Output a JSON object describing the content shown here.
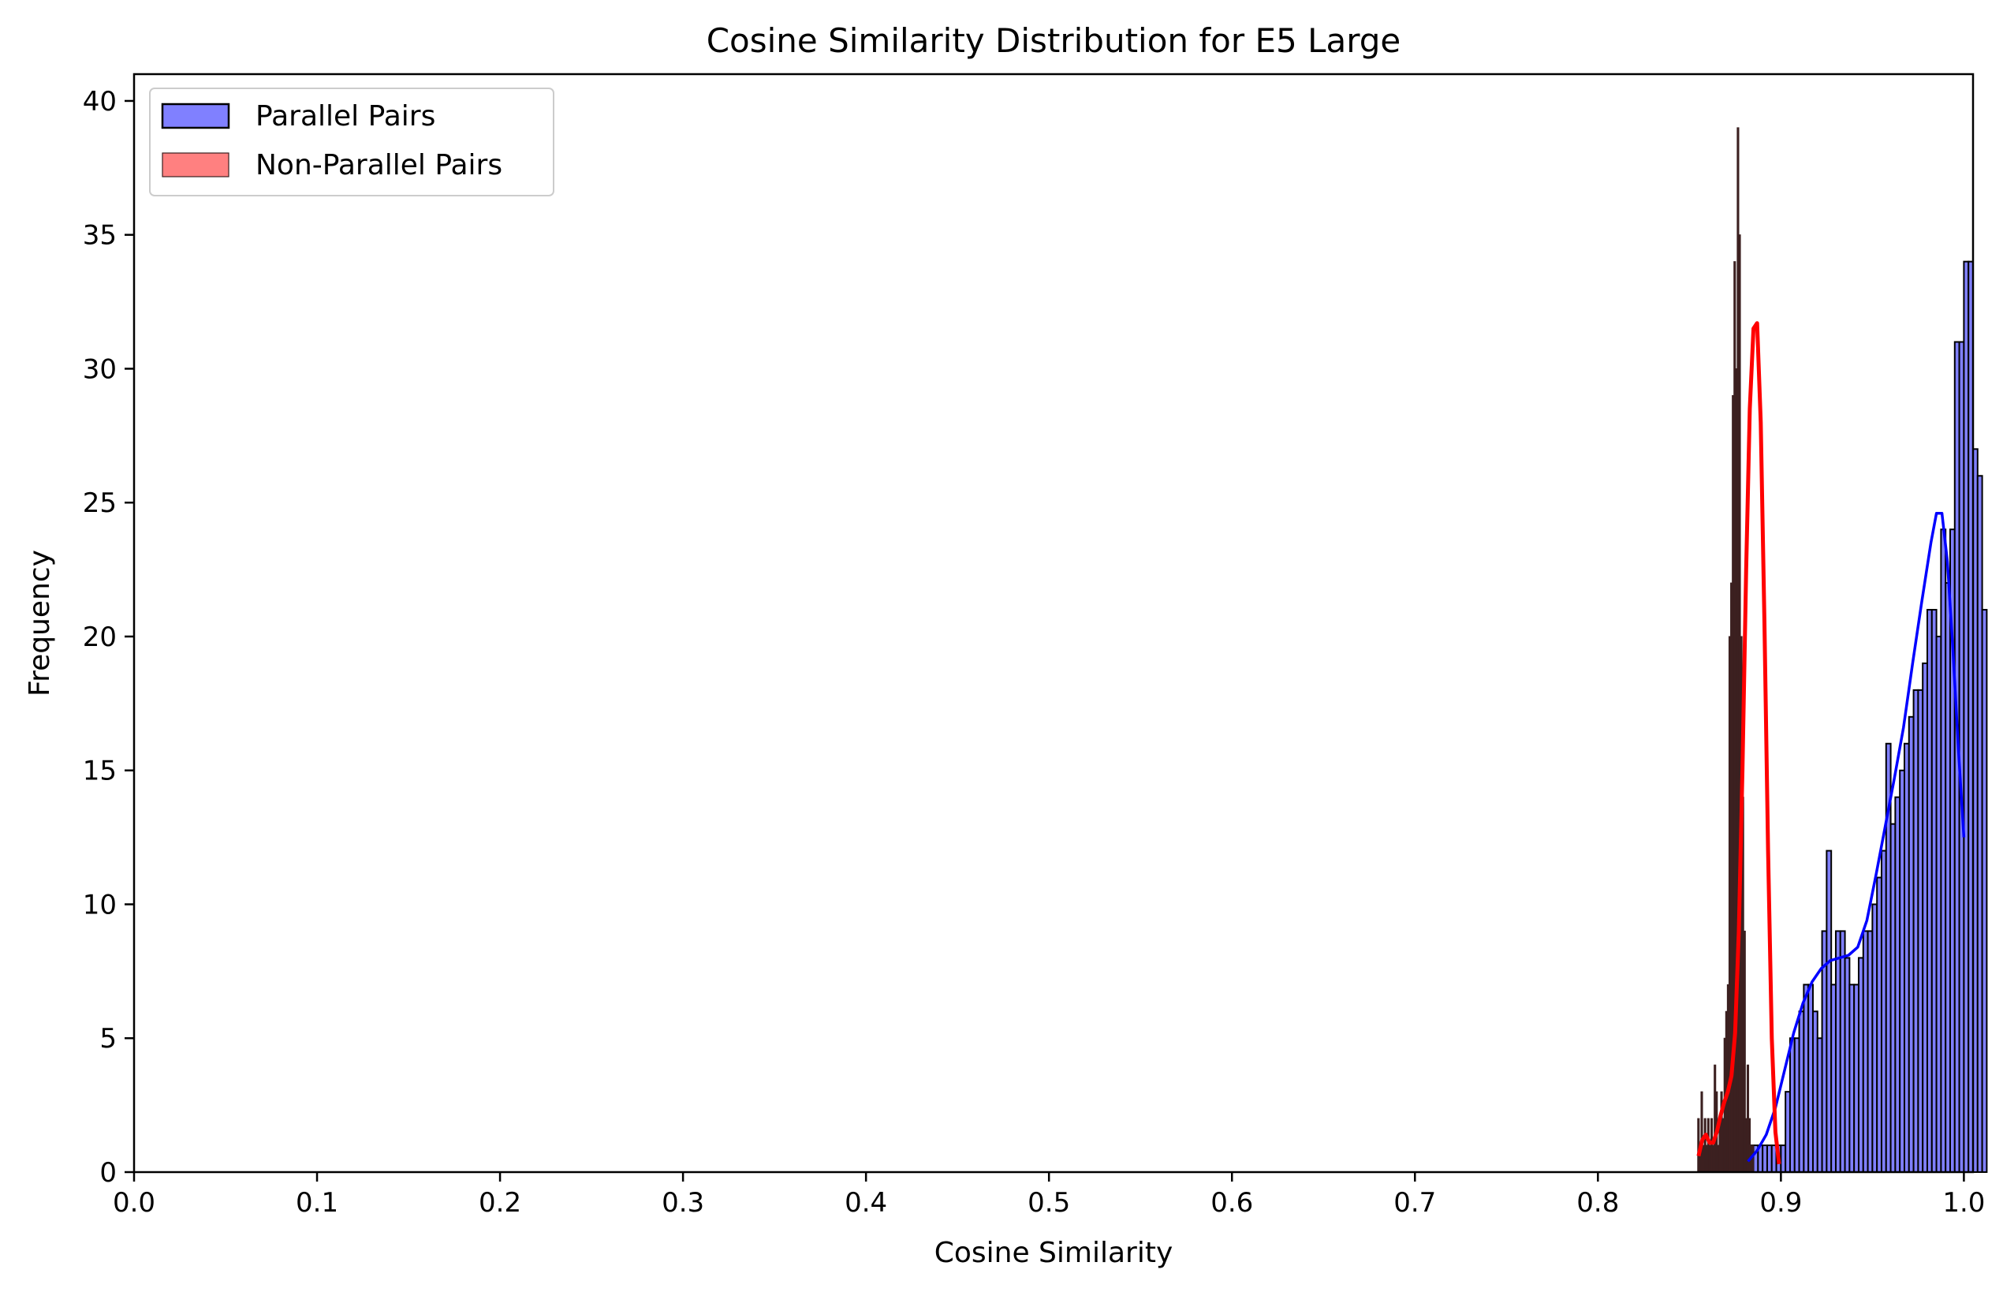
{
  "chart_data": {
    "type": "bar",
    "title": "Cosine Similarity Distribution for E5 Large",
    "xlabel": "Cosine Similarity",
    "ylabel": "Frequency",
    "xlim": [
      0.0,
      1.005
    ],
    "ylim": [
      0,
      41
    ],
    "xticks": [
      "0.0",
      "0.1",
      "0.2",
      "0.3",
      "0.4",
      "0.5",
      "0.6",
      "0.7",
      "0.8",
      "0.9",
      "1.0"
    ],
    "yticks": [
      "0",
      "5",
      "10",
      "15",
      "20",
      "25",
      "30",
      "35",
      "40"
    ],
    "legend_position": "top-left",
    "series": [
      {
        "name": "Parallel Pairs",
        "fill_color": "#8080ff",
        "edge_color": "#000000",
        "kde_color": "#0000ff",
        "bin_start": 0.8825,
        "bin_width": 0.0025,
        "values": [
          1,
          1,
          1,
          1,
          1,
          1,
          1,
          1,
          3,
          5,
          5,
          6,
          7,
          7,
          6,
          5,
          9,
          12,
          7,
          9,
          9,
          8,
          7,
          7,
          8,
          9,
          9,
          10,
          11,
          12,
          16,
          13,
          14,
          15,
          16,
          17,
          18,
          18,
          19,
          21,
          21,
          20,
          24,
          22,
          24,
          31,
          31,
          34,
          34,
          27,
          26,
          21
        ],
        "kde_x": [
          0.882,
          0.887,
          0.892,
          0.897,
          0.902,
          0.907,
          0.912,
          0.917,
          0.922,
          0.927,
          0.932,
          0.937,
          0.942,
          0.947,
          0.952,
          0.957,
          0.962,
          0.967,
          0.972,
          0.977,
          0.982,
          0.985,
          0.988,
          0.991,
          0.994,
          0.997,
          1.0
        ],
        "kde_y": [
          0.4,
          0.8,
          1.4,
          2.4,
          3.8,
          5.2,
          6.3,
          7.1,
          7.6,
          7.9,
          8.0,
          8.1,
          8.4,
          9.4,
          11.1,
          12.9,
          14.7,
          16.6,
          19.0,
          21.3,
          23.5,
          24.6,
          24.6,
          22.8,
          19.5,
          15.8,
          12.5
        ]
      },
      {
        "name": "Non-Parallel Pairs",
        "fill_color": "#ff8080",
        "overlap_color": "#3e2020",
        "edge_color": "#3a2020",
        "kde_color": "#ff0000",
        "bin_start": 0.8545,
        "bin_width": 0.0009,
        "values": [
          2,
          1,
          3,
          1,
          2,
          1,
          2,
          1,
          2,
          1,
          4,
          3,
          1,
          2,
          3,
          2,
          5,
          6,
          7,
          20,
          22,
          29,
          34,
          30,
          39,
          35,
          20,
          14,
          9,
          2,
          4,
          2,
          1,
          1
        ],
        "kde_x": [
          0.855,
          0.857,
          0.859,
          0.861,
          0.863,
          0.865,
          0.867,
          0.869,
          0.871,
          0.873,
          0.875,
          0.877,
          0.879,
          0.881,
          0.883,
          0.885,
          0.887,
          0.889,
          0.891,
          0.893,
          0.895,
          0.897,
          0.899
        ],
        "kde_y": [
          0.6,
          1.2,
          1.4,
          1.1,
          1.1,
          1.5,
          2.1,
          2.6,
          3.0,
          3.6,
          5.2,
          9.0,
          15.0,
          22.5,
          28.5,
          31.5,
          31.7,
          28.0,
          20.5,
          12.0,
          5.0,
          1.5,
          0.3
        ]
      }
    ]
  }
}
